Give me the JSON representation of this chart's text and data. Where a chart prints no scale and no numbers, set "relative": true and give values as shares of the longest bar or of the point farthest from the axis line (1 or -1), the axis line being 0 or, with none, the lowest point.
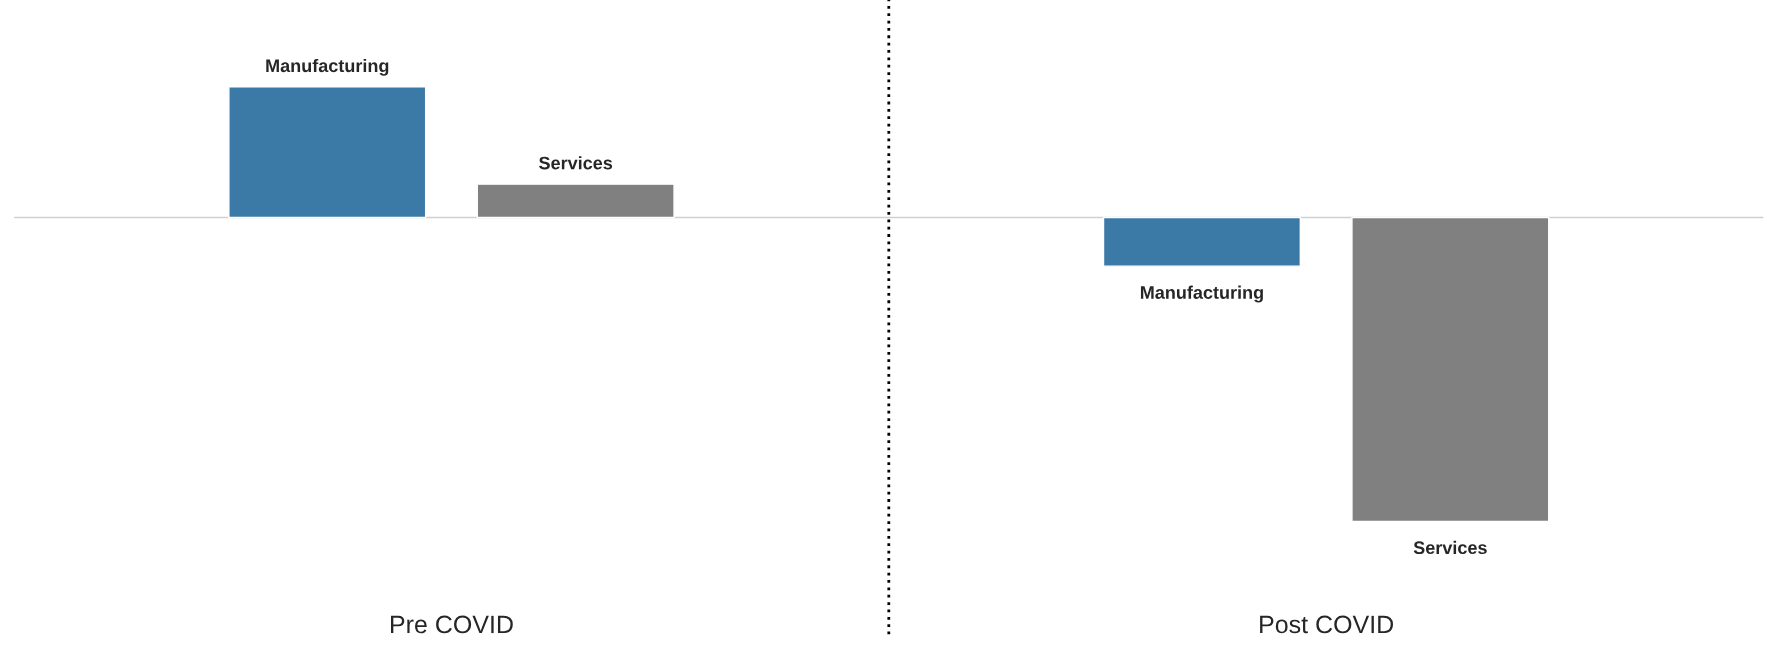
{
  "chart_data": {
    "type": "bar",
    "relative": true,
    "categories": [
      "Pre COVID",
      "Post COVID"
    ],
    "series": [
      {
        "name": "Manufacturing",
        "color": "#3b7aa6",
        "values": [
          0.43,
          -0.16
        ]
      },
      {
        "name": "Services",
        "color": "#808080",
        "values": [
          0.11,
          -1
        ]
      }
    ],
    "legend": false,
    "grid": false
  }
}
